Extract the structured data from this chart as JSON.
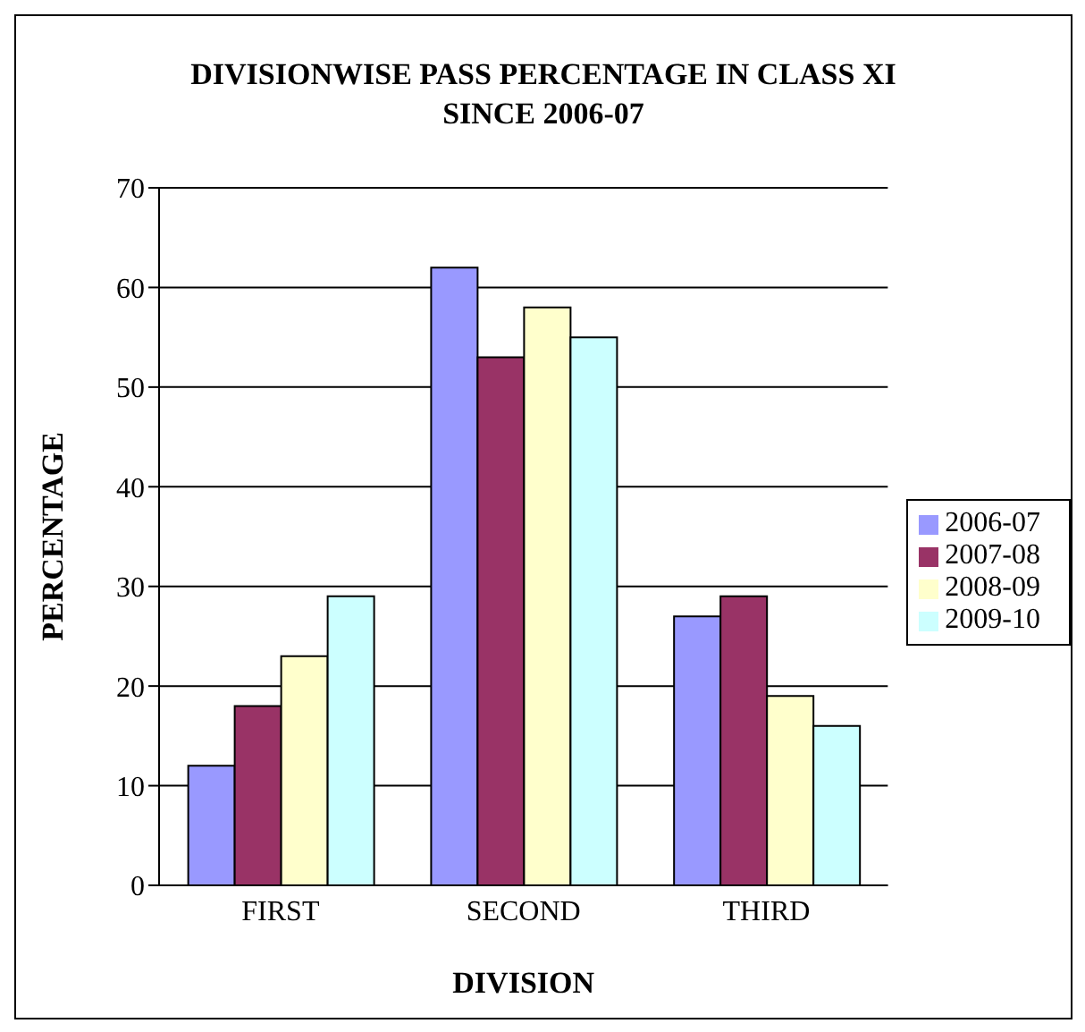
{
  "chart_data": {
    "type": "bar",
    "title": "DIVISIONWISE PASS PERCENTAGE IN CLASS XI SINCE 2006-07",
    "xlabel": "DIVISION",
    "ylabel": "PERCENTAGE",
    "categories": [
      "FIRST",
      "SECOND",
      "THIRD"
    ],
    "series": [
      {
        "name": "2006-07",
        "color": "#9999ff",
        "values": [
          12,
          62,
          27
        ]
      },
      {
        "name": "2007-08",
        "color": "#993366",
        "values": [
          18,
          53,
          29
        ]
      },
      {
        "name": "2008-09",
        "color": "#ffffcc",
        "values": [
          23,
          58,
          19
        ]
      },
      {
        "name": "2009-10",
        "color": "#ccffff",
        "values": [
          29,
          55,
          16
        ]
      }
    ],
    "ylim": [
      0,
      70
    ],
    "yticks": [
      0,
      10,
      20,
      30,
      40,
      50,
      60,
      70
    ],
    "grid": "y",
    "legend": "right"
  }
}
